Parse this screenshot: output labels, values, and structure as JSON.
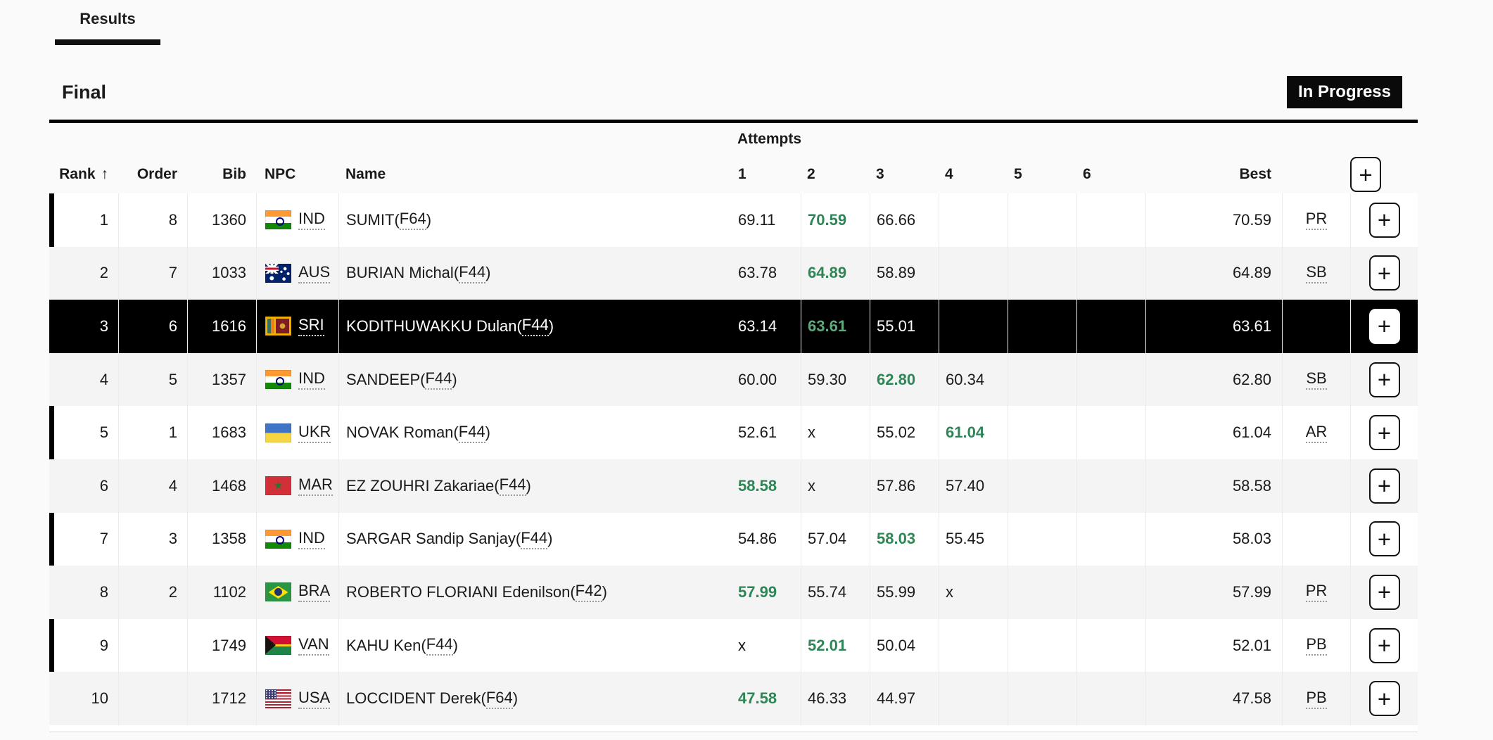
{
  "tabs": {
    "results": "Results"
  },
  "section": {
    "title": "Final",
    "status": "In Progress"
  },
  "table": {
    "group_header": "Attempts",
    "columns": {
      "rank": "Rank",
      "rank_sort": "↑",
      "order": "Order",
      "bib": "Bib",
      "npc": "NPC",
      "name": "Name",
      "attempts": [
        "1",
        "2",
        "3",
        "4",
        "5",
        "6"
      ],
      "best": "Best",
      "add": "+"
    },
    "class_wrap": {
      "open": " (",
      "close": ")"
    },
    "rows": [
      {
        "rank": "1",
        "order": "8",
        "bib": "1360",
        "npc": "IND",
        "flag": "ind",
        "name": "SUMIT",
        "cls": "F64",
        "attempts": [
          {
            "v": "69.11"
          },
          {
            "v": "70.59",
            "best": true
          },
          {
            "v": "66.66"
          },
          {},
          {},
          {}
        ],
        "best": "70.59",
        "note": "PR",
        "bar": true,
        "selected": false,
        "shade": false
      },
      {
        "rank": "2",
        "order": "7",
        "bib": "1033",
        "npc": "AUS",
        "flag": "aus",
        "name": "BURIAN Michal",
        "cls": "F44",
        "attempts": [
          {
            "v": "63.78"
          },
          {
            "v": "64.89",
            "best": true
          },
          {
            "v": "58.89"
          },
          {},
          {},
          {}
        ],
        "best": "64.89",
        "note": "SB",
        "bar": false,
        "selected": false,
        "shade": true
      },
      {
        "rank": "3",
        "order": "6",
        "bib": "1616",
        "npc": "SRI",
        "flag": "sri",
        "name": "KODITHUWAKKU Dulan",
        "cls": "F44",
        "attempts": [
          {
            "v": "63.14"
          },
          {
            "v": "63.61",
            "best": true
          },
          {
            "v": "55.01"
          },
          {},
          {},
          {}
        ],
        "best": "63.61",
        "note": "",
        "bar": false,
        "selected": true,
        "shade": false
      },
      {
        "rank": "4",
        "order": "5",
        "bib": "1357",
        "npc": "IND",
        "flag": "ind",
        "name": "SANDEEP",
        "cls": "F44",
        "attempts": [
          {
            "v": "60.00"
          },
          {
            "v": "59.30"
          },
          {
            "v": "62.80",
            "best": true
          },
          {
            "v": "60.34"
          },
          {},
          {}
        ],
        "best": "62.80",
        "note": "SB",
        "bar": false,
        "selected": false,
        "shade": true
      },
      {
        "rank": "5",
        "order": "1",
        "bib": "1683",
        "npc": "UKR",
        "flag": "ukr",
        "name": "NOVAK Roman",
        "cls": "F44",
        "attempts": [
          {
            "v": "52.61"
          },
          {
            "v": "x"
          },
          {
            "v": "55.02"
          },
          {
            "v": "61.04",
            "best": true
          },
          {},
          {}
        ],
        "best": "61.04",
        "note": "AR",
        "bar": true,
        "selected": false,
        "shade": false
      },
      {
        "rank": "6",
        "order": "4",
        "bib": "1468",
        "npc": "MAR",
        "flag": "mar",
        "name": "EZ ZOUHRI Zakariae",
        "cls": "F44",
        "attempts": [
          {
            "v": "58.58",
            "best": true
          },
          {
            "v": "x"
          },
          {
            "v": "57.86"
          },
          {
            "v": "57.40"
          },
          {},
          {}
        ],
        "best": "58.58",
        "note": "",
        "bar": false,
        "selected": false,
        "shade": true
      },
      {
        "rank": "7",
        "order": "3",
        "bib": "1358",
        "npc": "IND",
        "flag": "ind",
        "name": "SARGAR Sandip Sanjay",
        "cls": "F44",
        "attempts": [
          {
            "v": "54.86"
          },
          {
            "v": "57.04"
          },
          {
            "v": "58.03",
            "best": true
          },
          {
            "v": "55.45"
          },
          {},
          {}
        ],
        "best": "58.03",
        "note": "",
        "bar": true,
        "selected": false,
        "shade": false
      },
      {
        "rank": "8",
        "order": "2",
        "bib": "1102",
        "npc": "BRA",
        "flag": "bra",
        "name": "ROBERTO FLORIANI Edenilson",
        "cls": "F42",
        "attempts": [
          {
            "v": "57.99",
            "best": true
          },
          {
            "v": "55.74"
          },
          {
            "v": "55.99"
          },
          {
            "v": "x"
          },
          {},
          {}
        ],
        "best": "57.99",
        "note": "PR",
        "bar": false,
        "selected": false,
        "shade": true
      },
      {
        "rank": "9",
        "order": "",
        "bib": "1749",
        "npc": "VAN",
        "flag": "van",
        "name": "KAHU Ken",
        "cls": "F44",
        "attempts": [
          {
            "v": "x"
          },
          {
            "v": "52.01",
            "best": true
          },
          {
            "v": "50.04"
          },
          {},
          {},
          {}
        ],
        "best": "52.01",
        "note": "PB",
        "bar": true,
        "selected": false,
        "shade": false
      },
      {
        "rank": "10",
        "order": "",
        "bib": "1712",
        "npc": "USA",
        "flag": "usa",
        "name": "LOCCIDENT Derek",
        "cls": "F64",
        "attempts": [
          {
            "v": "47.58",
            "best": true
          },
          {
            "v": "46.33"
          },
          {
            "v": "44.97"
          },
          {},
          {},
          {}
        ],
        "best": "47.58",
        "note": "PB",
        "bar": false,
        "selected": false,
        "shade": true
      }
    ]
  },
  "colors": {
    "accent_green": "#2e8657",
    "accent_green_on_dark": "#5ea97c",
    "highlight_row_bg": "#000000",
    "shade_row_bg": "#f4f4f4",
    "status_badge_bg": "#0a0a0a",
    "page_bg": "#fafafa"
  }
}
